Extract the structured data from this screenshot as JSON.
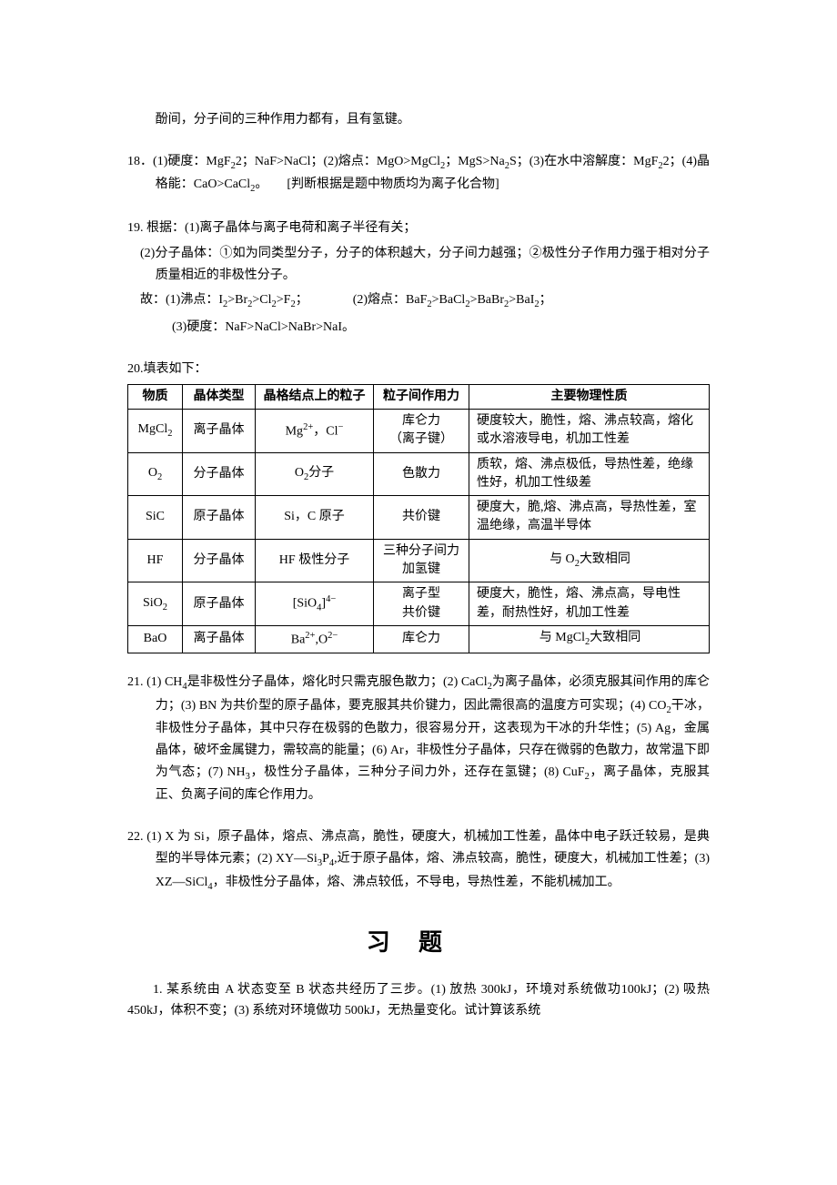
{
  "q17_frag": "酚间，分子间的三种作用力都有，且有氢键。",
  "q18": "18．(1)硬度：MgF₂<TiO₂；NaF>NaCl；(2)熔点：MgO>MgCl₂；MgS>Na₂S；(3)在水中溶解度：MgF₂<MgBr₂；(4)晶格能：CaO>CaCl₂。　　[判断根据是题中物质均为离子化合物]",
  "q19a": "19. 根据：(1)离子晶体与离子电荷和离子半径有关；",
  "q19b": "(2)分子晶体：①如为同类型分子，分子的体积越大，分子间力越强；②极性分子作用力强于相对分子质量相近的非极性分子。",
  "q19c": "故：(1)沸点：I₂>Br₂>Cl₂>F₂；　　　　(2)熔点：BaF₂>BaCl₂>BaBr₂>BaI₂；",
  "q19d": "(3)硬度：NaF>NaCl>NaBr>NaI。",
  "q20_intro": "20.填表如下：",
  "table": {
    "headers": [
      "物质",
      "晶体类型",
      "晶格结点上的粒子",
      "粒子间作用力",
      "主要物理性质"
    ],
    "rows": [
      {
        "c1": "MgCl₂",
        "c2": "离子晶体",
        "c3": "Mg²⁺，Cl⁻",
        "c4": "库仑力\n（离子键）",
        "c5": "硬度较大，脆性，熔、沸点较高，熔化或水溶液导电，机加工性差"
      },
      {
        "c1": "O₂",
        "c2": "分子晶体",
        "c3": "O₂分子",
        "c4": "色散力",
        "c5": "质软，熔、沸点极低，导热性差，绝缘性好，机加工性级差"
      },
      {
        "c1": "SiC",
        "c2": "原子晶体",
        "c3": "Si，C 原子",
        "c4": "共价键",
        "c5": "硬度大，脆,熔、沸点高，导热性差，室温绝缘，高温半导体"
      },
      {
        "c1": "HF",
        "c2": "分子晶体",
        "c3": "HF 极性分子",
        "c4": "三种分子间力\n加氢键",
        "c5": "与 O₂大致相同"
      },
      {
        "c1": "SiO₂",
        "c2": "原子晶体",
        "c3": "[SiO₄]⁴⁻",
        "c4": "离子型\n共价键",
        "c5": "硬度大，脆性，熔、沸点高，导电性差，耐热性好，机加工性差"
      },
      {
        "c1": "BaO",
        "c2": "离子晶体",
        "c3": "Ba²⁺,O²⁻",
        "c4": "库仑力",
        "c5": "与 MgCl₂大致相同"
      }
    ],
    "col_widths": [
      "60px",
      "80px",
      "130px",
      "100px",
      "auto"
    ],
    "last_col_center": [
      false,
      false,
      false,
      true,
      false,
      true
    ]
  },
  "q21": "21. (1) CH₄是非极性分子晶体，熔化时只需克服色散力；(2) CaCl₂为离子晶体，必须克服其间作用的库仑力；(3) BN 为共价型的原子晶体，要克服其共价键力，因此需很高的温度方可实现；(4) CO₂干冰，非极性分子晶体，其中只存在极弱的色散力，很容易分开，这表现为干冰的升华性；(5) Ag，金属晶体，破坏金属键力，需较高的能量；(6) Ar，非极性分子晶体，只存在微弱的色散力，故常温下即为气态；(7) NH₃，极性分子晶体，三种分子间力外，还存在氢键；(8) CuF₂，离子晶体，克服其正、负离子间的库仑作用力。",
  "q22": "22. (1) X 为 Si，原子晶体，熔点、沸点高，脆性，硬度大，机械加工性差，晶体中电子跃迁较易，是典型的半导体元素；(2) XY—Si₃P₄,近于原子晶体，熔、沸点较高，脆性，硬度大，机械加工性差；(3) XZ—SiCl₄，非极性分子晶体，熔、沸点较低，不导电，导热性差，不能机械加工。",
  "section_title": "习题",
  "ex1": "1. 某系统由 A 状态变至 B 状态共经历了三步。(1) 放热 300kJ，环境对系统做功100kJ；(2) 吸热 450kJ，体积不变；(3) 系统对环境做功 500kJ，无热量变化。试计算该系统"
}
